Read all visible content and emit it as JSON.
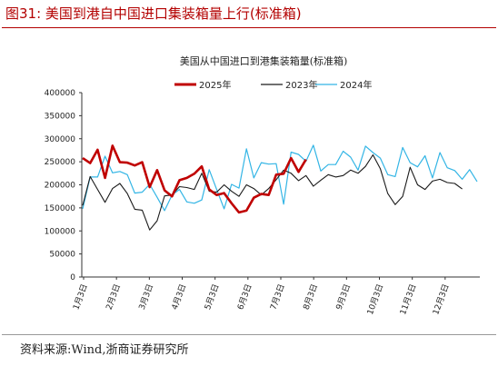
{
  "figure_title": "图31:  美国到港自中国进口集装箱量上行(标准箱)",
  "source": "资料来源:Wind,浙商证券研究所",
  "chart_data": {
    "type": "line",
    "title": "美国从中国进口到港集装箱量(标准箱)",
    "xlabel": "",
    "ylabel": "",
    "ylim": [
      0,
      400000
    ],
    "yticks": [
      "400000",
      "350000",
      "300000",
      "250000",
      "200000",
      "150000",
      "100000",
      "50000",
      "0"
    ],
    "month_labels": [
      "1月3日",
      "2月3日",
      "3月3日",
      "4月3日",
      "5月3日",
      "6月3日",
      "7月3日",
      "8月3日",
      "9月3日",
      "10月3日",
      "11月3日",
      "12月3日"
    ],
    "grid": false,
    "legend_position": "top",
    "series": [
      {
        "name": "2025年",
        "color": "#c00000",
        "values": [
          258000,
          247000,
          276000,
          215000,
          285000,
          249000,
          248000,
          242000,
          249000,
          195000,
          232000,
          188000,
          175000,
          210000,
          215000,
          224000,
          240000,
          190000,
          178000,
          182000,
          160000,
          140000,
          144000,
          172000,
          180000,
          178000,
          222000,
          224000,
          258000,
          228000,
          255000
        ]
      },
      {
        "name": "2023年",
        "color": "#1a1a1a",
        "values": [
          155000,
          218000,
          190000,
          162000,
          192000,
          203000,
          181000,
          147000,
          145000,
          102000,
          122000,
          176000,
          178000,
          196000,
          194000,
          190000,
          225000,
          186000,
          184000,
          200000,
          186000,
          175000,
          200000,
          192000,
          178000,
          192000,
          211000,
          232000,
          225000,
          209000,
          220000,
          197000,
          210000,
          222000,
          217000,
          220000,
          232000,
          225000,
          240000,
          265000,
          235000,
          181000,
          157000,
          175000,
          238000,
          200000,
          190000,
          208000,
          212000,
          205000,
          203000,
          191000
        ]
      },
      {
        "name": "2024年",
        "color": "#33b5e5",
        "values": [
          148000,
          217000,
          217000,
          262000,
          226000,
          229000,
          222000,
          182000,
          184000,
          201000,
          173000,
          144000,
          178000,
          190000,
          163000,
          160000,
          167000,
          233000,
          190000,
          148000,
          201000,
          193000,
          278000,
          215000,
          248000,
          245000,
          246000,
          158000,
          271000,
          266000,
          251000,
          286000,
          230000,
          244000,
          244000,
          273000,
          260000,
          232000,
          284000,
          270000,
          258000,
          222000,
          218000,
          281000,
          248000,
          239000,
          263000,
          215000,
          270000,
          237000,
          231000,
          212000,
          233000,
          207000
        ]
      }
    ]
  }
}
